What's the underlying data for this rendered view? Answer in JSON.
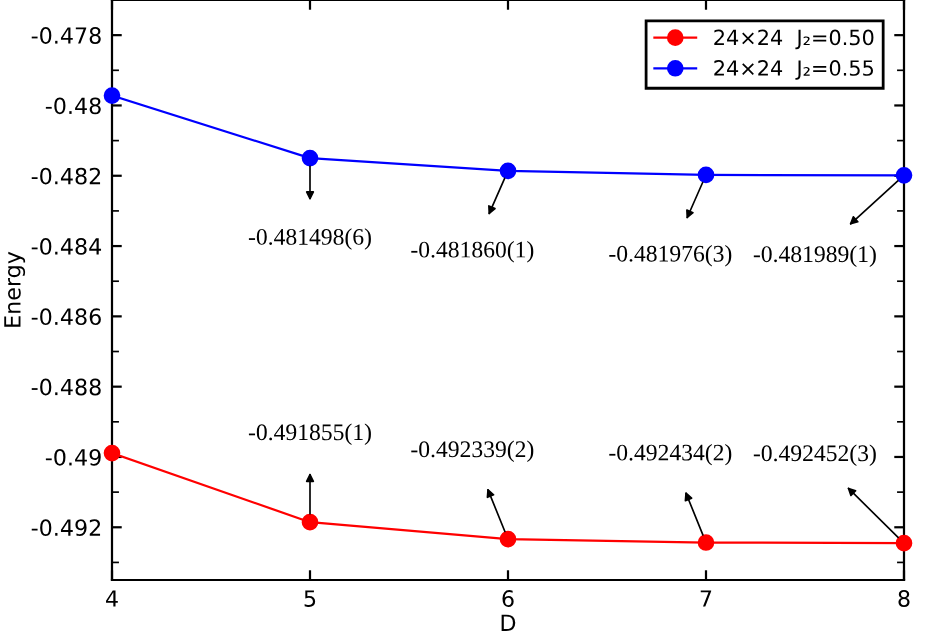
{
  "chart_data": {
    "type": "line",
    "xlabel": "D",
    "ylabel": "Energy",
    "x": [
      4,
      5,
      6,
      7,
      8
    ],
    "xlim": [
      4,
      8
    ],
    "xticks": [
      4,
      5,
      6,
      7,
      8
    ],
    "ylim": [
      -0.4935,
      -0.477
    ],
    "yticks": [
      -0.478,
      -0.48,
      -0.482,
      -0.484,
      -0.486,
      -0.488,
      -0.49,
      -0.492
    ],
    "series": [
      {
        "name": "24×24  J₂=0.50",
        "color": "#ff0000",
        "values": [
          -0.48989,
          -0.491855,
          -0.492339,
          -0.492434,
          -0.492452
        ]
      },
      {
        "name": "24×24  J₂=0.55",
        "color": "#0000ff",
        "values": [
          -0.47972,
          -0.481498,
          -0.48186,
          -0.481976,
          -0.481989
        ]
      }
    ],
    "marker": "circle",
    "line_style": "solid",
    "grid": false,
    "legend": "top right",
    "annotations": [
      {
        "text": "-0.481498(6)",
        "x": 5,
        "y": -0.481498
      },
      {
        "text": "-0.481860(1)",
        "x": 6,
        "y": -0.48186
      },
      {
        "text": "-0.481976(3)",
        "x": 7,
        "y": -0.481976
      },
      {
        "text": "-0.481989(1)",
        "x": 8,
        "y": -0.481989
      },
      {
        "text": "-0.491855(1)",
        "x": 5,
        "y": -0.491855
      },
      {
        "text": "-0.492339(2)",
        "x": 6,
        "y": -0.492339
      },
      {
        "text": "-0.492434(2)",
        "x": 7,
        "y": -0.492434
      },
      {
        "text": "-0.492452(3)",
        "x": 8,
        "y": -0.492452
      }
    ]
  }
}
